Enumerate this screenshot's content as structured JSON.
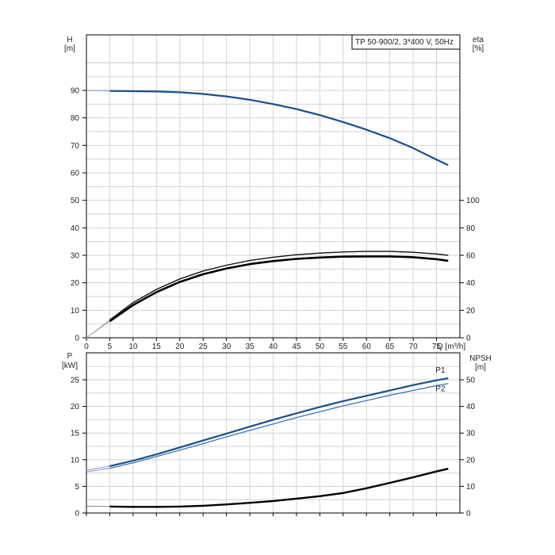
{
  "chart_data": [
    {
      "type": "line",
      "title": "TP 50-900/2, 3*400 V, 50Hz",
      "xlabel": "Q [m³/h]",
      "xlim": [
        0,
        80
      ],
      "x_ticks": [
        "0",
        "5",
        "10",
        "15",
        "20",
        "25",
        "30",
        "35",
        "40",
        "45",
        "50",
        "55",
        "60",
        "65",
        "70",
        "75"
      ],
      "ylabel_left": [
        "H",
        "[m]"
      ],
      "ylim_left": [
        0,
        90
      ],
      "y_ticks_left": [
        "0",
        "10",
        "20",
        "30",
        "40",
        "50",
        "60",
        "70",
        "80",
        "90"
      ],
      "ylabel_right": [
        "eta",
        "[%]"
      ],
      "ylim_right": [
        0,
        100
      ],
      "y_ticks_right": [
        "0",
        "20",
        "40",
        "60",
        "80",
        "100"
      ],
      "grid": true,
      "series": [
        {
          "axis": "left",
          "color": "#1a4f8a",
          "x": [
            0,
            5,
            10,
            15,
            20,
            25,
            30,
            35,
            40,
            45,
            50,
            55,
            60,
            65,
            70,
            75,
            77.5
          ],
          "y": [
            90,
            89.8,
            89.7,
            89.6,
            89.3,
            88.7,
            87.8,
            86.6,
            85.0,
            83.2,
            81.0,
            78.5,
            75.7,
            72.6,
            69.0,
            64.8,
            62.8
          ]
        },
        {
          "axis": "left",
          "color": "#111111",
          "x": [
            0,
            5,
            10,
            15,
            20,
            25,
            30,
            35,
            40,
            45,
            50,
            55,
            60,
            65,
            70,
            75,
            77.5
          ],
          "y": [
            0,
            6.5,
            12.8,
            17.6,
            21.4,
            24.3,
            26.4,
            28.1,
            29.3,
            30.2,
            30.8,
            31.2,
            31.4,
            31.4,
            31.1,
            30.5,
            30.0
          ]
        },
        {
          "axis": "left",
          "color": "#000000",
          "x": [
            0,
            5,
            10,
            15,
            20,
            25,
            30,
            35,
            40,
            45,
            50,
            55,
            60,
            65,
            70,
            75,
            77.5
          ],
          "y": [
            0,
            6.0,
            11.9,
            16.6,
            20.3,
            23.1,
            25.2,
            26.8,
            27.9,
            28.7,
            29.2,
            29.5,
            29.6,
            29.6,
            29.3,
            28.6,
            28.0
          ]
        }
      ]
    },
    {
      "type": "line",
      "xlim": [
        0,
        80
      ],
      "ylabel_left": [
        "P",
        "[kW]"
      ],
      "ylim_left": [
        0,
        25
      ],
      "y_ticks_left": [
        "0",
        "5",
        "10",
        "15",
        "20",
        "25"
      ],
      "ylabel_right": [
        "NPSH",
        "[m]"
      ],
      "ylim_right": [
        0,
        50
      ],
      "y_ticks_right": [
        "0",
        "10",
        "20",
        "30",
        "40",
        "50"
      ],
      "grid": true,
      "series": [
        {
          "name": "P1",
          "axis": "left",
          "color": "#1a4f8a",
          "x": [
            0,
            5,
            10,
            15,
            20,
            25,
            30,
            35,
            40,
            45,
            50,
            55,
            60,
            65,
            70,
            75,
            77.5
          ],
          "y": [
            8.0,
            8.8,
            9.8,
            11.0,
            12.3,
            13.6,
            14.9,
            16.2,
            17.5,
            18.7,
            19.9,
            21.0,
            22.0,
            23.0,
            24.0,
            24.9,
            25.3
          ]
        },
        {
          "name": "P2",
          "axis": "left",
          "color": "#2a6ab0",
          "x": [
            0,
            5,
            10,
            15,
            20,
            25,
            30,
            35,
            40,
            45,
            50,
            55,
            60,
            65,
            70,
            75,
            77.5
          ],
          "y": [
            7.7,
            8.4,
            9.4,
            10.6,
            11.8,
            13.0,
            14.3,
            15.5,
            16.7,
            17.9,
            19.0,
            20.1,
            21.1,
            22.1,
            23.0,
            23.9,
            24.3
          ]
        },
        {
          "axis": "right",
          "color": "#000000",
          "x": [
            0,
            5,
            10,
            15,
            20,
            25,
            30,
            35,
            40,
            45,
            50,
            55,
            60,
            65,
            70,
            75,
            77.5
          ],
          "y": [
            2.6,
            2.4,
            2.3,
            2.3,
            2.4,
            2.7,
            3.2,
            3.8,
            4.5,
            5.4,
            6.3,
            7.5,
            9.3,
            11.3,
            13.4,
            15.6,
            16.6
          ]
        }
      ]
    }
  ]
}
